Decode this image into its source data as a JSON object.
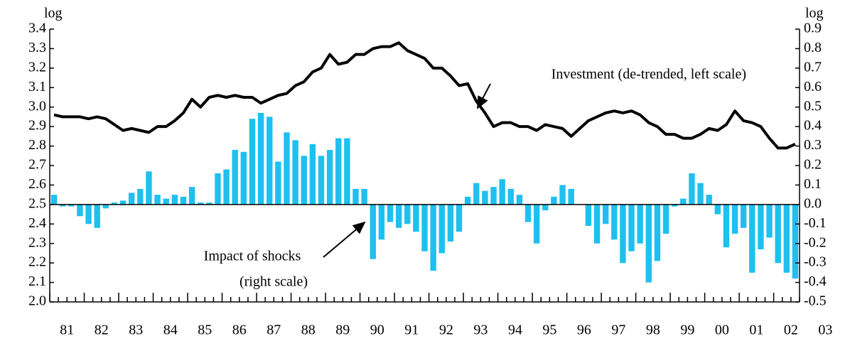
{
  "chart_data": {
    "type": "bar-line",
    "ylabel": "log",
    "y2label": "log",
    "annotations": [
      {
        "text": "Investment (de-trended, left scale)"
      },
      {
        "text": "Impact of shocks"
      },
      {
        "text": "(right scale)"
      }
    ],
    "xlim": [
      1981,
      2002.75
    ],
    "xticks": [
      {
        "value": 1981.5,
        "label": "81"
      },
      {
        "value": 1982.5,
        "label": "82"
      },
      {
        "value": 1983.5,
        "label": "83"
      },
      {
        "value": 1984.5,
        "label": "84"
      },
      {
        "value": 1985.5,
        "label": "85"
      },
      {
        "value": 1986.5,
        "label": "86"
      },
      {
        "value": 1987.5,
        "label": "87"
      },
      {
        "value": 1988.5,
        "label": "88"
      },
      {
        "value": 1989.5,
        "label": "89"
      },
      {
        "value": 1990.5,
        "label": "90"
      },
      {
        "value": 1991.5,
        "label": "91"
      },
      {
        "value": 1992.5,
        "label": "92"
      },
      {
        "value": 1993.5,
        "label": "93"
      },
      {
        "value": 1994.5,
        "label": "94"
      },
      {
        "value": 1995.5,
        "label": "95"
      },
      {
        "value": 1996.5,
        "label": "96"
      },
      {
        "value": 1997.5,
        "label": "97"
      },
      {
        "value": 1998.5,
        "label": "98"
      },
      {
        "value": 1999.5,
        "label": "99"
      },
      {
        "value": 2000.5,
        "label": "00"
      },
      {
        "value": 2001.5,
        "label": "01"
      },
      {
        "value": 2002.5,
        "label": "02"
      },
      {
        "value": 2003.5,
        "label": "03"
      }
    ],
    "ylim": [
      2.0,
      3.4
    ],
    "yticks": [
      {
        "value": 2.0,
        "label": "2.0"
      },
      2.1,
      2.2,
      2.3,
      2.4,
      {
        "value": 2.5,
        "label": "2.5"
      },
      2.6,
      2.7,
      2.8,
      2.9,
      {
        "value": 3.0,
        "label": "3.0"
      },
      3.1,
      3.2,
      3.3,
      3.4
    ],
    "y2lim": [
      -0.5,
      0.9
    ],
    "y2ticks": [
      {
        "value": -0.5,
        "label": "-0.5"
      },
      -0.4,
      -0.3,
      -0.2,
      -0.1,
      {
        "value": 0,
        "label": "0.0"
      },
      0.1,
      0.2,
      0.3,
      0.4,
      0.5,
      0.6,
      0.7,
      0.8,
      0.9
    ],
    "series": [
      {
        "kind": "bar",
        "axis": "y2",
        "color": "#1ec0f0",
        "values": [
          0.05,
          -0.01,
          -0.01,
          -0.06,
          -0.1,
          -0.12,
          -0.02,
          0.01,
          0.02,
          0.06,
          0.08,
          0.17,
          0.05,
          0.03,
          0.05,
          0.04,
          0.09,
          0.01,
          0.01,
          0.16,
          0.18,
          0.28,
          0.27,
          0.44,
          0.47,
          0.45,
          0.22,
          0.37,
          0.33,
          0.25,
          0.31,
          0.25,
          0.28,
          0.34,
          0.34,
          0.08,
          0.08,
          -0.28,
          -0.18,
          -0.09,
          -0.12,
          -0.1,
          -0.14,
          -0.24,
          -0.34,
          -0.25,
          -0.19,
          -0.14,
          0.04,
          0.11,
          0.07,
          0.09,
          0.13,
          0.08,
          0.05,
          -0.09,
          -0.2,
          -0.03,
          0.04,
          0.1,
          0.08,
          0.0,
          -0.11,
          -0.2,
          -0.1,
          -0.18,
          -0.3,
          -0.24,
          -0.2,
          -0.4,
          -0.29,
          -0.15,
          -0.01,
          0.03,
          0.16,
          0.11,
          0.05,
          -0.05,
          -0.22,
          -0.15,
          -0.12,
          -0.35,
          -0.23,
          -0.17,
          -0.3,
          -0.35,
          -0.38
        ]
      },
      {
        "kind": "line",
        "axis": "y",
        "color": "#000000",
        "values": [
          2.96,
          2.95,
          2.95,
          2.95,
          2.94,
          2.95,
          2.94,
          2.91,
          2.88,
          2.89,
          2.88,
          2.87,
          2.9,
          2.9,
          2.93,
          2.97,
          3.04,
          3.0,
          3.05,
          3.06,
          3.05,
          3.06,
          3.05,
          3.05,
          3.02,
          3.04,
          3.06,
          3.07,
          3.11,
          3.13,
          3.18,
          3.2,
          3.27,
          3.22,
          3.23,
          3.27,
          3.27,
          3.3,
          3.31,
          3.31,
          3.33,
          3.29,
          3.27,
          3.25,
          3.2,
          3.2,
          3.16,
          3.11,
          3.12,
          3.03,
          2.97,
          2.9,
          2.92,
          2.92,
          2.9,
          2.9,
          2.88,
          2.91,
          2.9,
          2.89,
          2.85,
          2.89,
          2.93,
          2.95,
          2.97,
          2.98,
          2.97,
          2.98,
          2.96,
          2.92,
          2.9,
          2.86,
          2.86,
          2.84,
          2.84,
          2.86,
          2.89,
          2.88,
          2.91,
          2.98,
          2.93,
          2.92,
          2.9,
          2.84,
          2.79,
          2.79,
          2.81
        ]
      }
    ]
  }
}
